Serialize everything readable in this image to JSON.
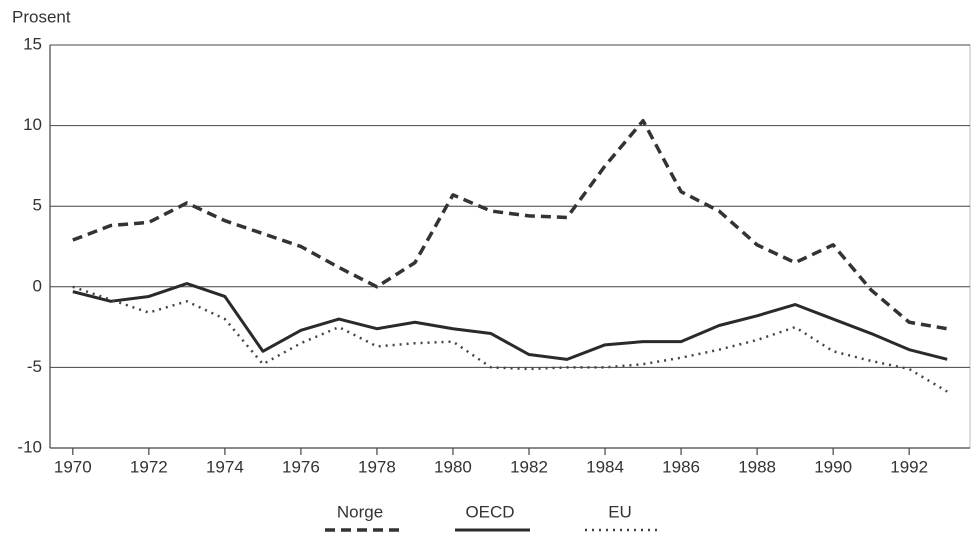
{
  "chart_data": {
    "type": "line",
    "y_label": "Prosent",
    "x": [
      1970,
      1971,
      1972,
      1973,
      1974,
      1975,
      1976,
      1977,
      1978,
      1979,
      1980,
      1981,
      1982,
      1983,
      1984,
      1985,
      1986,
      1987,
      1988,
      1989,
      1990,
      1991,
      1992,
      1993
    ],
    "series": [
      {
        "name": "Norge",
        "color": "#333333",
        "dash": "10,6",
        "width": 3.5,
        "values": [
          2.9,
          3.8,
          4.0,
          5.2,
          4.1,
          3.3,
          2.5,
          1.2,
          0.0,
          1.5,
          5.7,
          4.7,
          4.4,
          4.3,
          7.5,
          10.3,
          5.9,
          4.7,
          2.6,
          1.5,
          2.6,
          -0.2,
          -2.2,
          -2.6
        ]
      },
      {
        "name": "OECD",
        "color": "#2a2a2a",
        "dash": "none",
        "width": 3,
        "values": [
          -0.3,
          -0.9,
          -0.6,
          0.2,
          -0.6,
          -4.0,
          -2.7,
          -2.0,
          -2.6,
          -2.2,
          -2.6,
          -2.9,
          -4.2,
          -4.5,
          -3.6,
          -3.4,
          -3.4,
          -2.4,
          -1.8,
          -1.1,
          -2.0,
          -2.9,
          -3.9,
          -4.5
        ]
      },
      {
        "name": "EU",
        "color": "#444444",
        "dash": "2,5",
        "width": 2.5,
        "values": [
          0.0,
          -0.8,
          -1.6,
          -0.9,
          -2.0,
          -4.8,
          -3.5,
          -2.5,
          -3.7,
          -3.5,
          -3.4,
          -5.0,
          -5.1,
          -5.0,
          -5.0,
          -4.8,
          -4.4,
          -3.9,
          -3.3,
          -2.5,
          -4.0,
          -4.6,
          -5.1,
          -6.5
        ]
      }
    ],
    "xlim": [
      1969.4,
      1993.6
    ],
    "xticks": [
      1970,
      1972,
      1974,
      1976,
      1978,
      1980,
      1982,
      1984,
      1986,
      1988,
      1990,
      1992
    ],
    "ylim": [
      -10,
      15
    ],
    "yticks": [
      -10,
      -5,
      0,
      5,
      10,
      15
    ],
    "grid": true
  }
}
